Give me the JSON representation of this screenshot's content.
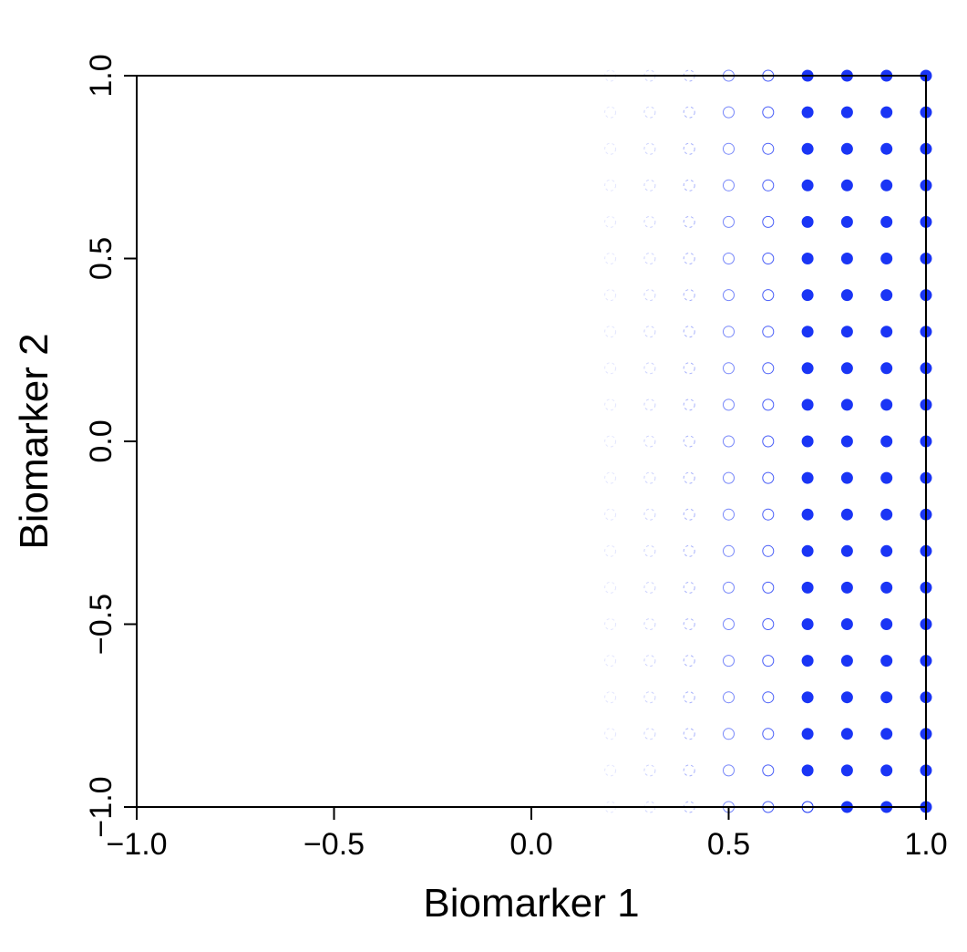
{
  "chart_data": {
    "type": "scatter",
    "xlabel": "Biomarker 1",
    "ylabel": "Biomarker 2",
    "xlim": [
      -1.0,
      1.0
    ],
    "ylim": [
      -1.0,
      1.0
    ],
    "xticks": [
      -1.0,
      -0.5,
      0.0,
      0.5,
      1.0
    ],
    "yticks": [
      -1.0,
      -0.5,
      0.0,
      0.5,
      1.0
    ],
    "xtick_labels": [
      "−1.0",
      "−0.5",
      "0.0",
      "0.5",
      "1.0"
    ],
    "ytick_labels": [
      "−1.0",
      "−0.5",
      "0.0",
      "0.5",
      "1.0"
    ],
    "grid": false,
    "point_color": "#1a35f5",
    "marker_note": "points on a 0.1 grid; open circles for lower values, filled circles where Biomarker 1 >= 0.7 (and 0.8 at y = -1.0)",
    "points": {
      "grid_x": [
        0.2,
        0.3,
        0.4,
        0.5,
        0.6,
        0.7,
        0.8,
        0.9,
        1.0
      ],
      "grid_y": [
        -1.0,
        -0.9,
        -0.8,
        -0.7,
        -0.6,
        -0.5,
        -0.4,
        -0.3,
        -0.2,
        -0.1,
        0.0,
        0.1,
        0.2,
        0.3,
        0.4,
        0.5,
        0.6,
        0.7,
        0.8,
        0.9,
        1.0
      ],
      "opacity_by_x": {
        "0.2": 0.12,
        "0.3": 0.22,
        "0.4": 0.38,
        "0.5": 0.6,
        "0.6": 0.8,
        "0.7": 1.0,
        "0.8": 1.0,
        "0.9": 1.0,
        "1.0": 1.0
      },
      "filled_from_x": 0.7
    }
  }
}
